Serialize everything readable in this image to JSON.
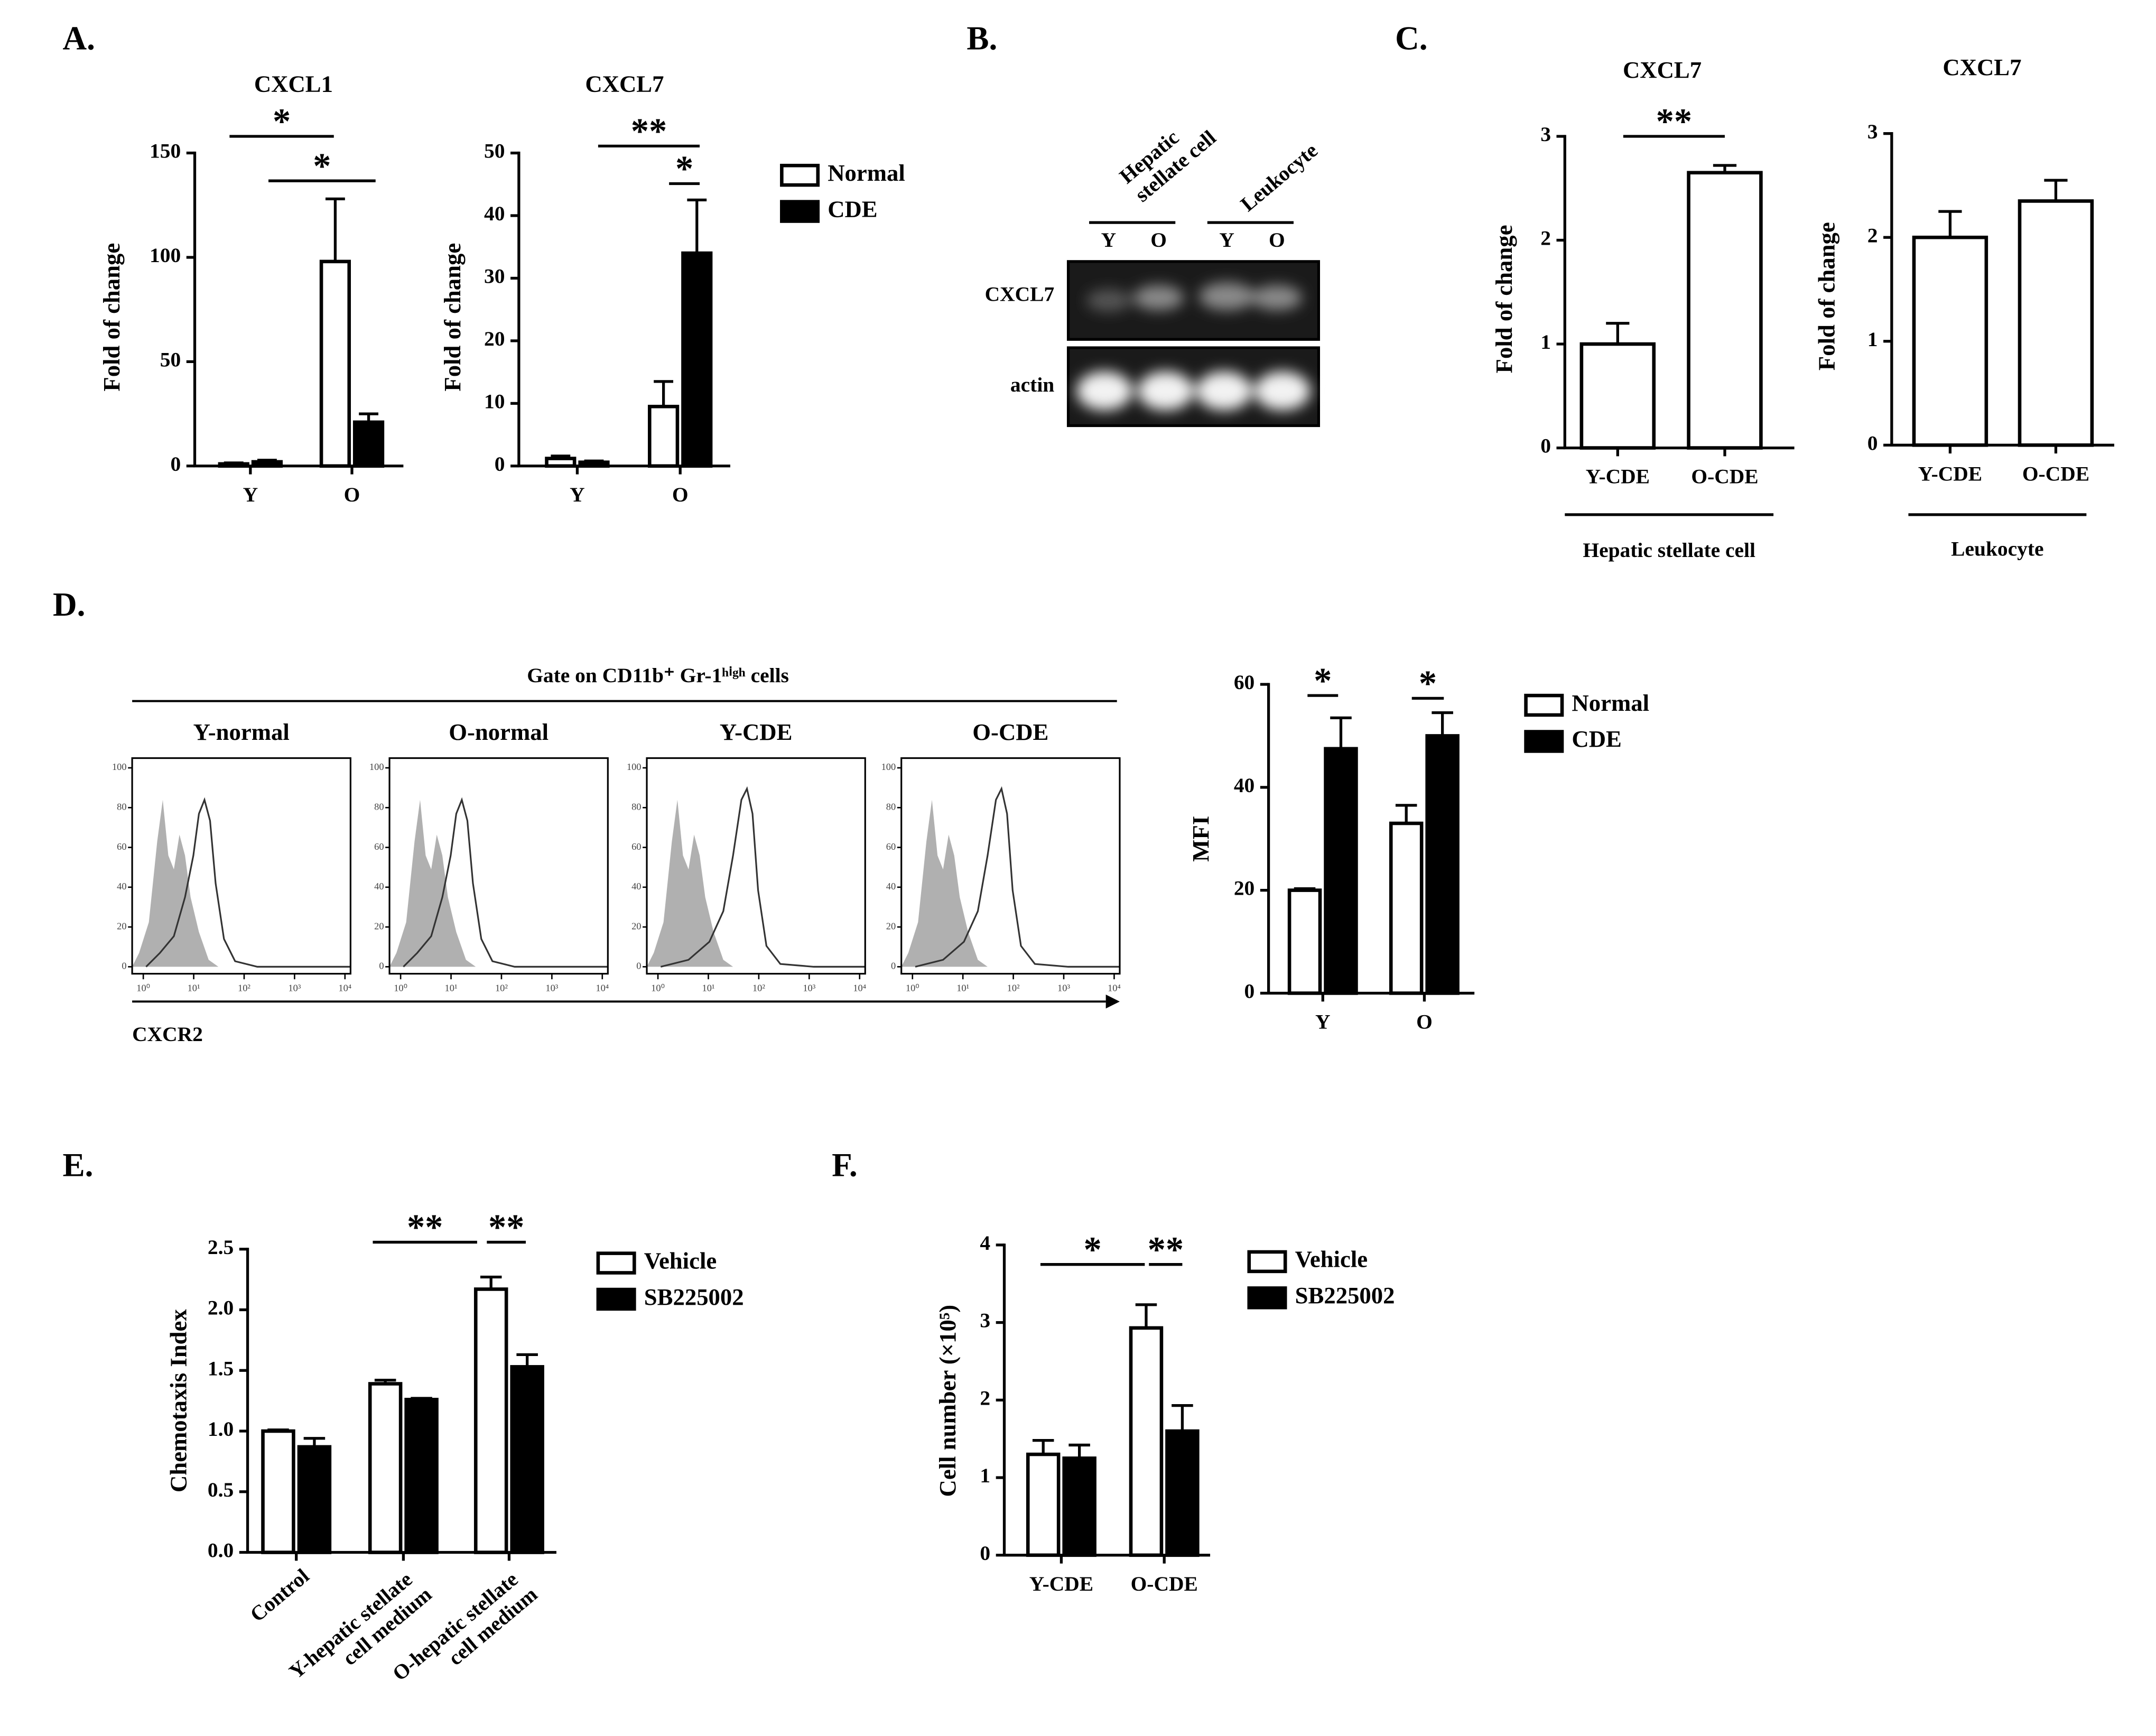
{
  "panel_labels": [
    "A.",
    "B.",
    "C.",
    "D.",
    "E.",
    "F."
  ],
  "gel": {
    "groups": [
      "Hepatic stellate cell",
      "Leukocyte"
    ],
    "lanes": [
      "Y",
      "O",
      "Y",
      "O"
    ],
    "rows": [
      "CXCL7",
      "actin"
    ]
  },
  "flow": {
    "title": "Gate on CD11b⁺ Gr-1ʰⁱᵍʰ cells",
    "panels": [
      "Y-normal",
      "O-normal",
      "Y-CDE",
      "O-CDE"
    ],
    "x_label": "CXCR2",
    "yticks": [
      0,
      20,
      40,
      60,
      80,
      100
    ],
    "xticks": [
      {
        "value": 1,
        "label": "10⁰"
      },
      {
        "value": 10,
        "label": "10¹"
      },
      {
        "value": 100,
        "label": "10²"
      },
      {
        "value": 1000,
        "label": "10³"
      },
      {
        "value": 10000,
        "label": "10⁴"
      }
    ],
    "xscale": "log"
  },
  "chart_data": [
    {
      "type": "bar",
      "title": "CXCL1",
      "ylabel": "Fold of change",
      "categories": [
        "Y",
        "O"
      ],
      "series": [
        {
          "name": "Normal",
          "color": "#ffffff",
          "values": [
            1,
            98
          ],
          "errors": [
            0.5,
            30
          ]
        },
        {
          "name": "CDE",
          "color": "#000000",
          "values": [
            2,
            21
          ],
          "errors": [
            0.8,
            4
          ]
        }
      ],
      "ylim": [
        0,
        150
      ],
      "yticks": [
        0,
        50,
        100,
        150
      ],
      "annotations": [
        "*",
        "*"
      ]
    },
    {
      "type": "bar",
      "title": "CXCL7",
      "ylabel": "Fold of change",
      "categories": [
        "Y",
        "O"
      ],
      "series": [
        {
          "name": "Normal",
          "color": "#ffffff",
          "values": [
            1.2,
            9.5
          ],
          "errors": [
            0.4,
            4
          ]
        },
        {
          "name": "CDE",
          "color": "#000000",
          "values": [
            0.6,
            34
          ],
          "errors": [
            0.2,
            8.5
          ]
        }
      ],
      "ylim": [
        0,
        50
      ],
      "yticks": [
        0,
        10,
        20,
        30,
        40,
        50
      ],
      "annotations": [
        "**",
        "*"
      ]
    },
    {
      "type": "bar",
      "title": "CXCL7",
      "ylabel": "Fold of change",
      "categories": [
        "Y-CDE",
        "O-CDE"
      ],
      "values": [
        1.0,
        2.65
      ],
      "errors": [
        0.2,
        0.07
      ],
      "color": "#ffffff",
      "ylim": [
        0,
        3
      ],
      "yticks": [
        0,
        1,
        2,
        3
      ],
      "group": "Hepatic stellate cell",
      "annotations": [
        "**"
      ]
    },
    {
      "type": "bar",
      "title": "CXCL7",
      "ylabel": "Fold of change",
      "categories": [
        "Y-CDE",
        "O-CDE"
      ],
      "values": [
        2.0,
        2.35
      ],
      "errors": [
        0.25,
        0.2
      ],
      "color": "#ffffff",
      "ylim": [
        0,
        3
      ],
      "yticks": [
        0,
        1,
        2,
        3
      ],
      "group": "Leukocyte",
      "annotations": []
    },
    {
      "type": "bar",
      "ylabel": "MFI",
      "categories": [
        "Y",
        "O"
      ],
      "series": [
        {
          "name": "Normal",
          "color": "#ffffff",
          "values": [
            20,
            33
          ],
          "errors": [
            0.3,
            3.5
          ]
        },
        {
          "name": "CDE",
          "color": "#000000",
          "values": [
            47.5,
            50
          ],
          "errors": [
            6,
            4.5
          ]
        }
      ],
      "ylim": [
        0,
        60
      ],
      "yticks": [
        0,
        20,
        40,
        60
      ],
      "annotations": [
        "*",
        "*"
      ]
    },
    {
      "type": "bar",
      "ylabel": "Chemotaxis Index",
      "categories": [
        "Control",
        "Y-hepatic stellate cell medium",
        "O-hepatic stellate cell medium"
      ],
      "series": [
        {
          "name": "Vehicle",
          "color": "#ffffff",
          "values": [
            1.0,
            1.39,
            2.17
          ],
          "errors": [
            0.01,
            0.03,
            0.1
          ]
        },
        {
          "name": "SB225002",
          "color": "#000000",
          "values": [
            0.87,
            1.26,
            1.53
          ],
          "errors": [
            0.07,
            0.01,
            0.1
          ]
        }
      ],
      "ylim": [
        0,
        2.5
      ],
      "yticks": [
        {
          "value": 0,
          "label": "0.0"
        },
        0.5,
        {
          "value": 1,
          "label": "1.0"
        },
        1.5,
        {
          "value": 2,
          "label": "2.0"
        },
        2.5
      ],
      "annotations": [
        "**",
        "**"
      ]
    },
    {
      "type": "bar",
      "ylabel": "Cell number (×10⁵)",
      "categories": [
        "Y-CDE",
        "O-CDE"
      ],
      "series": [
        {
          "name": "Vehicle",
          "color": "#ffffff",
          "values": [
            1.3,
            2.93
          ],
          "errors": [
            0.18,
            0.3
          ]
        },
        {
          "name": "SB225002",
          "color": "#000000",
          "values": [
            1.25,
            1.6
          ],
          "errors": [
            0.17,
            0.33
          ]
        }
      ],
      "ylim": [
        0,
        4
      ],
      "yticks": [
        0,
        1,
        2,
        3,
        4
      ],
      "annotations": [
        "*",
        "**"
      ]
    }
  ]
}
